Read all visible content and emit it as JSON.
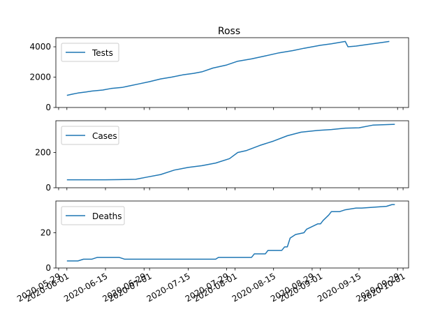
{
  "chart_data": {
    "title": "Ross",
    "x_ticks": [
      "2020-05-29",
      "2020-06-01",
      "2020-06-15",
      "2020-06-29",
      "2020-07-01",
      "2020-07-15",
      "2020-07-29",
      "2020-08-01",
      "2020-08-15",
      "2020-08-29",
      "2020-09-01",
      "2020-09-15",
      "2020-09-29",
      "2020-10-01"
    ],
    "x_range": [
      "2020-05-28",
      "2020-10-03"
    ],
    "line_color": "#1f77b4",
    "charts": [
      {
        "type": "line",
        "series": [
          {
            "name": "Tests",
            "x": [
              "2020-06-01",
              "2020-06-03",
              "2020-06-05",
              "2020-06-08",
              "2020-06-10",
              "2020-06-14",
              "2020-06-17",
              "2020-06-21",
              "2020-06-23",
              "2020-06-27",
              "2020-07-01",
              "2020-07-05",
              "2020-07-09",
              "2020-07-13",
              "2020-07-17",
              "2020-07-20",
              "2020-07-24",
              "2020-07-29",
              "2020-08-02",
              "2020-08-07",
              "2020-08-12",
              "2020-08-17",
              "2020-08-22",
              "2020-08-26",
              "2020-09-01",
              "2020-09-05",
              "2020-09-10",
              "2020-09-11",
              "2020-09-14",
              "2020-09-18",
              "2020-09-22",
              "2020-09-26"
            ],
            "y": [
              800,
              880,
              950,
              1020,
              1080,
              1150,
              1250,
              1320,
              1400,
              1550,
              1700,
              1880,
              2000,
              2150,
              2250,
              2350,
              2600,
              2800,
              3050,
              3200,
              3400,
              3600,
              3750,
              3900,
              4100,
              4200,
              4350,
              4000,
              4050,
              4150,
              4250,
              4350
            ]
          }
        ],
        "yticks": [
          0,
          2000,
          4000
        ],
        "ylim": [
          0,
          4600
        ],
        "legend": "top-left"
      },
      {
        "type": "line",
        "series": [
          {
            "name": "Cases",
            "x": [
              "2020-06-01",
              "2020-06-10",
              "2020-06-15",
              "2020-06-20",
              "2020-06-26",
              "2020-06-30",
              "2020-07-05",
              "2020-07-10",
              "2020-07-15",
              "2020-07-20",
              "2020-07-25",
              "2020-07-30",
              "2020-08-02",
              "2020-08-05",
              "2020-08-10",
              "2020-08-15",
              "2020-08-20",
              "2020-08-25",
              "2020-08-31",
              "2020-09-05",
              "2020-09-10",
              "2020-09-15",
              "2020-09-20",
              "2020-09-28"
            ],
            "y": [
              45,
              45,
              45,
              46,
              48,
              60,
              75,
              100,
              115,
              125,
              140,
              165,
              200,
              210,
              240,
              265,
              295,
              315,
              325,
              330,
              338,
              340,
              355,
              360
            ]
          }
        ],
        "yticks": [
          0,
          200
        ],
        "ylim": [
          0,
          380
        ],
        "legend": "top-left"
      },
      {
        "type": "line",
        "series": [
          {
            "name": "Deaths",
            "x": [
              "2020-06-01",
              "2020-06-05",
              "2020-06-07",
              "2020-06-10",
              "2020-06-12",
              "2020-06-20",
              "2020-06-22",
              "2020-07-15",
              "2020-07-25",
              "2020-07-26",
              "2020-08-07",
              "2020-08-08",
              "2020-08-12",
              "2020-08-13",
              "2020-08-18",
              "2020-08-19",
              "2020-08-20",
              "2020-08-21",
              "2020-08-23",
              "2020-08-26",
              "2020-08-27",
              "2020-08-31",
              "2020-09-01",
              "2020-09-02",
              "2020-09-04",
              "2020-09-05",
              "2020-09-08",
              "2020-09-10",
              "2020-09-14",
              "2020-09-16",
              "2020-09-25",
              "2020-09-27",
              "2020-09-28"
            ],
            "y": [
              4,
              4,
              5,
              5,
              6,
              6,
              5,
              5,
              5,
              6,
              6,
              8,
              8,
              10,
              10,
              12,
              12,
              17,
              19,
              20,
              22,
              25,
              25,
              27,
              30,
              32,
              32,
              33,
              34,
              34,
              35,
              36,
              36
            ]
          }
        ],
        "yticks": [
          0,
          20
        ],
        "ylim": [
          0,
          38
        ],
        "legend": "top-left"
      }
    ]
  }
}
